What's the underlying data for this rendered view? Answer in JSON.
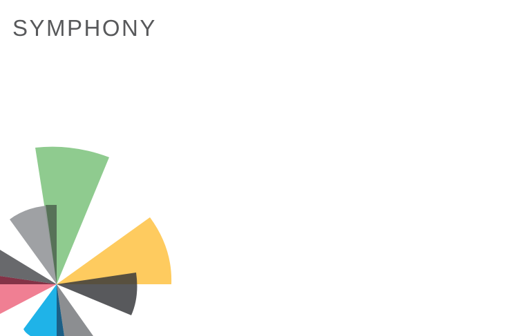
{
  "header": {
    "brand_name": "SYMPHONY"
  },
  "logo": {
    "icon": "radial-petal-mark",
    "petals": [
      {
        "name": "green",
        "color": "#8fcb8f"
      },
      {
        "name": "yellow",
        "color": "#fecb5f"
      },
      {
        "name": "dark-gray",
        "color": "#333438"
      },
      {
        "name": "gray",
        "color": "#808285"
      },
      {
        "name": "blue",
        "color": "#1fb3e8"
      },
      {
        "name": "pink",
        "color": "#f07f93"
      },
      {
        "name": "maroon",
        "color": "#6e0f27"
      },
      {
        "name": "slate",
        "color": "#4d4f52"
      },
      {
        "name": "light-gray",
        "color": "#95979a"
      },
      {
        "name": "olive",
        "color": "#4c6b4c"
      }
    ]
  }
}
